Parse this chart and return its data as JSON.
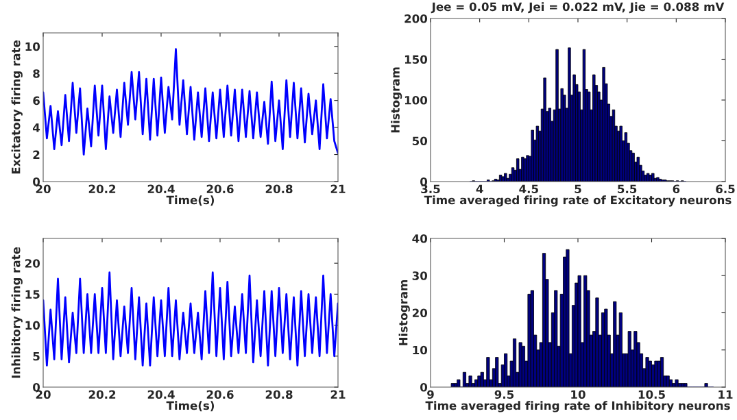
{
  "chart_data": [
    {
      "type": "line",
      "xlabel": "Time(s)",
      "ylabel": "Excitatory firing rate",
      "color": "#0000ff",
      "x": [
        20.0,
        20.0125,
        20.025,
        20.0375,
        20.05,
        20.0625,
        20.075,
        20.0875,
        20.1,
        20.1125,
        20.125,
        20.1375,
        20.15,
        20.1625,
        20.175,
        20.1875,
        20.2,
        20.2125,
        20.225,
        20.2375,
        20.25,
        20.2625,
        20.275,
        20.2875,
        20.3,
        20.3125,
        20.325,
        20.3375,
        20.35,
        20.3625,
        20.375,
        20.3875,
        20.4,
        20.4125,
        20.425,
        20.4375,
        20.45,
        20.4625,
        20.475,
        20.4875,
        20.5,
        20.5125,
        20.525,
        20.5375,
        20.55,
        20.5625,
        20.575,
        20.5875,
        20.6,
        20.6125,
        20.625,
        20.6375,
        20.65,
        20.6625,
        20.675,
        20.6875,
        20.7,
        20.7125,
        20.725,
        20.7375,
        20.75,
        20.7625,
        20.775,
        20.7875,
        20.8,
        20.8125,
        20.825,
        20.8375,
        20.85,
        20.8625,
        20.875,
        20.8875,
        20.9,
        20.9125,
        20.925,
        20.9375,
        20.95,
        20.9625,
        20.975,
        20.9875,
        21.0
      ],
      "values": [
        6.6,
        3.2,
        5.6,
        2.4,
        5.2,
        2.7,
        6.4,
        3.0,
        7.3,
        3.6,
        6.9,
        2.0,
        5.4,
        2.6,
        7.1,
        3.4,
        7.1,
        2.4,
        6.3,
        3.6,
        6.8,
        3.3,
        7.3,
        4.2,
        8.1,
        4.6,
        8.1,
        3.5,
        7.6,
        3.1,
        7.6,
        3.4,
        7.7,
        3.6,
        7.0,
        4.6,
        9.8,
        4.2,
        7.5,
        3.5,
        7.0,
        3.1,
        6.6,
        3.3,
        6.9,
        3.0,
        6.6,
        3.2,
        6.8,
        3.3,
        7.1,
        3.4,
        6.8,
        3.0,
        6.8,
        3.3,
        6.7,
        3.2,
        6.6,
        3.3,
        5.9,
        2.8,
        7.4,
        3.0,
        6.0,
        2.4,
        7.5,
        3.3,
        7.3,
        3.2,
        6.9,
        2.9,
        6.5,
        3.5,
        6.0,
        2.4,
        7.2,
        3.2,
        6.1,
        3.0,
        2.1
      ],
      "xlim": [
        20,
        21
      ],
      "xticks": [
        20,
        20.2,
        20.4,
        20.6,
        20.8,
        21
      ],
      "ylim": [
        0,
        11
      ],
      "yticks": [
        0,
        2,
        4,
        6,
        8,
        10
      ]
    },
    {
      "type": "histogram",
      "title": "Jee = 0.05 mV, Jei = 0.022 mV, Jie = 0.088 mV",
      "xlabel": "Time averaged firing rate of Excitatory neurons",
      "ylabel": "Histogram",
      "color": "#00007f",
      "bins": [
        3.9,
        3.925,
        3.95,
        3.975,
        4.0,
        4.025,
        4.05,
        4.075,
        4.1,
        4.125,
        4.15,
        4.175,
        4.2,
        4.225,
        4.25,
        4.275,
        4.3,
        4.325,
        4.35,
        4.375,
        4.4,
        4.425,
        4.45,
        4.475,
        4.5,
        4.525,
        4.55,
        4.575,
        4.6,
        4.625,
        4.65,
        4.675,
        4.7,
        4.725,
        4.75,
        4.775,
        4.8,
        4.825,
        4.85,
        4.875,
        4.9,
        4.925,
        4.95,
        4.975,
        5.0,
        5.025,
        5.05,
        5.075,
        5.1,
        5.125,
        5.15,
        5.175,
        5.2,
        5.225,
        5.25,
        5.275,
        5.3,
        5.325,
        5.35,
        5.375,
        5.4,
        5.425,
        5.45,
        5.475,
        5.5,
        5.525,
        5.55,
        5.575,
        5.6,
        5.625,
        5.65,
        5.675,
        5.7,
        5.725,
        5.75,
        5.775,
        5.8,
        5.825,
        5.85,
        5.875,
        5.9,
        5.925,
        5.95,
        5.975,
        6.0,
        6.025,
        6.05,
        6.075,
        6.1
      ],
      "values": [
        0,
        1,
        0,
        0,
        0,
        0,
        0,
        2,
        0,
        1,
        3,
        2,
        8,
        6,
        10,
        4,
        9,
        17,
        14,
        28,
        15,
        30,
        28,
        32,
        31,
        63,
        51,
        68,
        62,
        89,
        127,
        86,
        90,
        74,
        88,
        162,
        89,
        114,
        106,
        90,
        164,
        106,
        131,
        119,
        110,
        88,
        162,
        113,
        110,
        88,
        131,
        118,
        110,
        100,
        140,
        120,
        95,
        80,
        88,
        68,
        62,
        68,
        50,
        60,
        47,
        38,
        35,
        24,
        30,
        20,
        13,
        8,
        10,
        8,
        10,
        4,
        5,
        3,
        2,
        2,
        1,
        1,
        1,
        0,
        1,
        0,
        1,
        0
      ],
      "xlim": [
        3.5,
        6.5
      ],
      "xticks": [
        3.5,
        4,
        4.5,
        5,
        5.5,
        6,
        6.5
      ],
      "ylim": [
        0,
        200
      ],
      "yticks": [
        0,
        50,
        100,
        150,
        200
      ]
    },
    {
      "type": "line",
      "xlabel": "Time(s)",
      "ylabel": "Inhibitory firing rate",
      "color": "#0000ff",
      "x": [
        20.0,
        20.0125,
        20.025,
        20.0375,
        20.05,
        20.0625,
        20.075,
        20.0875,
        20.1,
        20.1125,
        20.125,
        20.1375,
        20.15,
        20.1625,
        20.175,
        20.1875,
        20.2,
        20.2125,
        20.225,
        20.2375,
        20.25,
        20.2625,
        20.275,
        20.2875,
        20.3,
        20.3125,
        20.325,
        20.3375,
        20.35,
        20.3625,
        20.375,
        20.3875,
        20.4,
        20.4125,
        20.425,
        20.4375,
        20.45,
        20.4625,
        20.475,
        20.4875,
        20.5,
        20.5125,
        20.525,
        20.5375,
        20.55,
        20.5625,
        20.575,
        20.5875,
        20.6,
        20.6125,
        20.625,
        20.6375,
        20.65,
        20.6625,
        20.675,
        20.6875,
        20.7,
        20.7125,
        20.725,
        20.7375,
        20.75,
        20.7625,
        20.775,
        20.7875,
        20.8,
        20.8125,
        20.825,
        20.8375,
        20.85,
        20.8625,
        20.875,
        20.8875,
        20.9,
        20.9125,
        20.925,
        20.9375,
        20.95,
        20.9625,
        20.975,
        20.9875,
        21.0
      ],
      "values": [
        14,
        3.5,
        12.5,
        4.5,
        17.5,
        4.5,
        14.5,
        4,
        12,
        5.5,
        17.5,
        5.5,
        15,
        5.5,
        15,
        5.5,
        16,
        5.5,
        18.5,
        4.5,
        14,
        5,
        13,
        5.5,
        16,
        4.5,
        14.5,
        3.5,
        13.5,
        3.5,
        14.5,
        5,
        14,
        5,
        16,
        5,
        14,
        4.5,
        12,
        5.5,
        13.5,
        5.5,
        12,
        4.5,
        15.5,
        5.5,
        18.5,
        5,
        16,
        4.5,
        17,
        5,
        13,
        5.5,
        15,
        5.5,
        18,
        4,
        14,
        5,
        15.5,
        3.5,
        15.5,
        5,
        16,
        5.5,
        15,
        4.5,
        14.5,
        3.5,
        15.5,
        5,
        15,
        5.5,
        14.5,
        5,
        18,
        5.5,
        15,
        5,
        13.5
      ],
      "xlim": [
        20,
        21
      ],
      "xticks": [
        20,
        20.2,
        20.4,
        20.6,
        20.8,
        21
      ],
      "ylim": [
        0,
        24
      ],
      "yticks": [
        0,
        5,
        10,
        15,
        20
      ]
    },
    {
      "type": "histogram",
      "xlabel": "Time averaged firing rate of Inhibitory neurons",
      "ylabel": "Histogram",
      "color": "#00007f",
      "bins": [
        9.14,
        9.16,
        9.18,
        9.2,
        9.22,
        9.24,
        9.26,
        9.28,
        9.3,
        9.32,
        9.34,
        9.36,
        9.38,
        9.4,
        9.42,
        9.44,
        9.46,
        9.48,
        9.5,
        9.52,
        9.54,
        9.56,
        9.58,
        9.6,
        9.62,
        9.64,
        9.66,
        9.68,
        9.7,
        9.72,
        9.74,
        9.76,
        9.78,
        9.8,
        9.82,
        9.84,
        9.86,
        9.88,
        9.9,
        9.92,
        9.94,
        9.96,
        9.98,
        10.0,
        10.02,
        10.04,
        10.06,
        10.08,
        10.1,
        10.12,
        10.14,
        10.16,
        10.18,
        10.2,
        10.22,
        10.24,
        10.26,
        10.28,
        10.3,
        10.32,
        10.34,
        10.36,
        10.38,
        10.4,
        10.42,
        10.44,
        10.46,
        10.48,
        10.5,
        10.52,
        10.54,
        10.56,
        10.58,
        10.6,
        10.62,
        10.64,
        10.66,
        10.68,
        10.7,
        10.72,
        10.74,
        10.76,
        10.78,
        10.8,
        10.82,
        10.84,
        10.86,
        10.88,
        10.9,
        10.92
      ],
      "values": [
        1,
        1,
        2,
        0,
        4,
        1,
        3,
        1,
        2,
        3,
        4,
        2,
        8,
        2,
        5,
        8,
        1,
        6,
        9,
        3,
        7,
        13,
        4,
        12,
        11,
        7,
        25,
        26,
        14,
        10,
        12,
        36,
        29,
        12,
        20,
        26,
        11,
        25,
        35,
        37,
        9,
        22,
        28,
        30,
        12,
        30,
        26,
        14,
        15,
        24,
        14,
        20,
        21,
        14,
        9,
        23,
        14,
        20,
        9,
        9,
        15,
        10,
        15,
        12,
        9,
        5,
        8,
        7,
        6,
        7,
        7,
        8,
        3,
        3,
        2,
        1,
        2,
        1,
        1,
        1,
        0,
        0,
        0,
        0,
        0,
        0,
        1,
        0,
        0
      ],
      "xlim": [
        9,
        11
      ],
      "xticks": [
        9,
        9.5,
        10,
        10.5,
        11
      ],
      "ylim": [
        0,
        40
      ],
      "yticks": [
        0,
        10,
        20,
        30,
        40
      ]
    }
  ]
}
